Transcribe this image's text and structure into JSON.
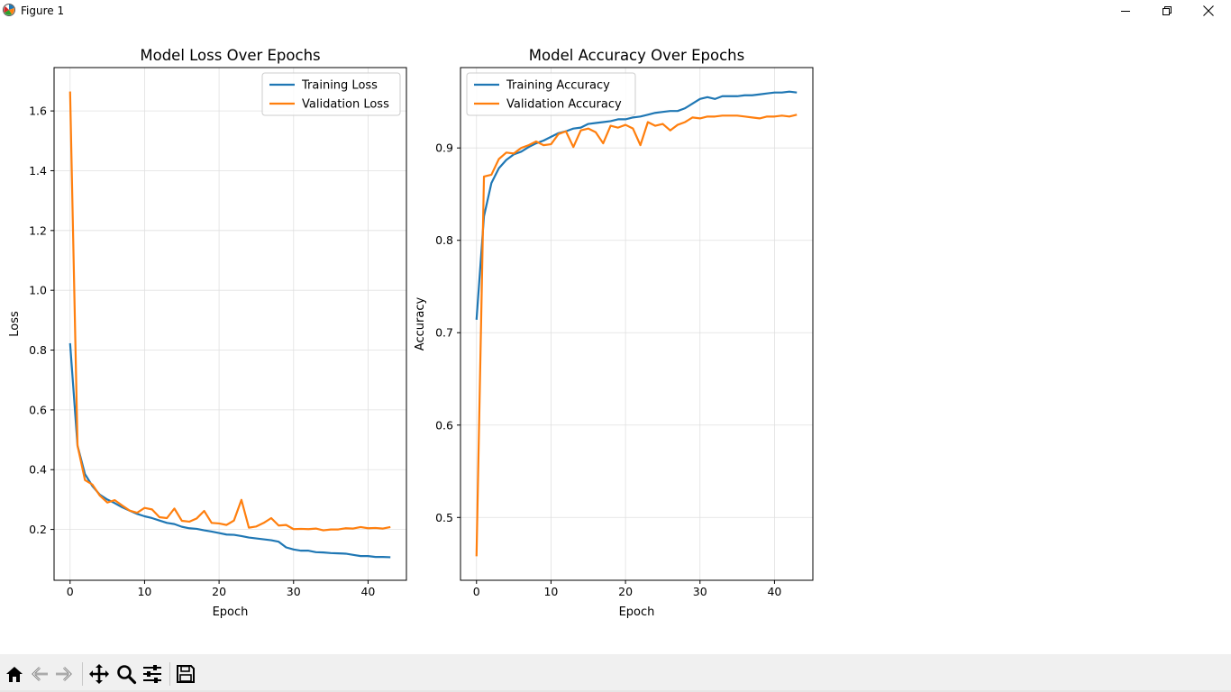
{
  "window": {
    "title": "Figure 1",
    "icons": [
      "matplotlib-app-icon",
      "minimize-icon",
      "restore-icon",
      "close-icon"
    ]
  },
  "toolbar": {
    "buttons": [
      {
        "name": "home-icon",
        "tooltip": "Reset original view"
      },
      {
        "name": "back-arrow-icon",
        "tooltip": "Back to previous view"
      },
      {
        "name": "forward-arrow-icon",
        "tooltip": "Forward to next view"
      },
      {
        "name": "pan-icon",
        "tooltip": "Pan axes"
      },
      {
        "name": "zoom-icon",
        "tooltip": "Zoom to rectangle"
      },
      {
        "name": "configure-subplots-icon",
        "tooltip": "Configure subplots"
      },
      {
        "name": "save-icon",
        "tooltip": "Save the figure"
      }
    ]
  },
  "colors": {
    "blue": "#1f77b4",
    "orange": "#ff7f0e",
    "grid": "#e0e0e0"
  },
  "chart_data": [
    {
      "type": "line",
      "title": "Model Loss Over Epochs",
      "xlabel": "Epoch",
      "ylabel": "Loss",
      "xlim": [
        -2.15,
        45.15
      ],
      "ylim": [
        0.03,
        1.745
      ],
      "xticks": [
        "0",
        "10",
        "20",
        "30",
        "40"
      ],
      "xtick_values": [
        0,
        10,
        20,
        30,
        40
      ],
      "yticks": [
        "0.2",
        "0.4",
        "0.6",
        "0.8",
        "1.0",
        "1.2",
        "1.4",
        "1.6"
      ],
      "ytick_values": [
        0.2,
        0.4,
        0.6,
        0.8,
        1.0,
        1.2,
        1.4,
        1.6
      ],
      "grid": true,
      "legend": "upper right",
      "series": [
        {
          "name": "Training Loss",
          "color": "#1f77b4",
          "values": [
            0.823,
            0.48,
            0.385,
            0.345,
            0.316,
            0.3,
            0.288,
            0.274,
            0.263,
            0.252,
            0.244,
            0.238,
            0.23,
            0.222,
            0.218,
            0.209,
            0.204,
            0.202,
            0.197,
            0.193,
            0.188,
            0.183,
            0.182,
            0.178,
            0.173,
            0.17,
            0.167,
            0.164,
            0.159,
            0.14,
            0.133,
            0.129,
            0.129,
            0.124,
            0.123,
            0.121,
            0.12,
            0.119,
            0.115,
            0.111,
            0.111,
            0.108,
            0.108,
            0.107
          ]
        },
        {
          "name": "Validation Loss",
          "color": "#ff7f0e",
          "values": [
            1.665,
            0.48,
            0.365,
            0.35,
            0.313,
            0.29,
            0.298,
            0.28,
            0.263,
            0.256,
            0.272,
            0.267,
            0.241,
            0.238,
            0.27,
            0.229,
            0.226,
            0.237,
            0.262,
            0.222,
            0.22,
            0.215,
            0.23,
            0.299,
            0.206,
            0.21,
            0.222,
            0.238,
            0.213,
            0.215,
            0.201,
            0.202,
            0.201,
            0.203,
            0.197,
            0.2,
            0.2,
            0.204,
            0.203,
            0.208,
            0.204,
            0.205,
            0.203,
            0.208
          ]
        }
      ]
    },
    {
      "type": "line",
      "title": "Model Accuracy Over Epochs",
      "xlabel": "Epoch",
      "ylabel": "Accuracy",
      "xlim": [
        -2.15,
        45.15
      ],
      "ylim": [
        0.432,
        0.987
      ],
      "xticks": [
        "0",
        "10",
        "20",
        "30",
        "40"
      ],
      "xtick_values": [
        0,
        10,
        20,
        30,
        40
      ],
      "yticks": [
        "0.5",
        "0.6",
        "0.7",
        "0.8",
        "0.9"
      ],
      "ytick_values": [
        0.5,
        0.6,
        0.7,
        0.8,
        0.9
      ],
      "grid": true,
      "legend": "upper left",
      "series": [
        {
          "name": "Training Accuracy",
          "color": "#1f77b4",
          "values": [
            0.714,
            0.826,
            0.862,
            0.878,
            0.887,
            0.893,
            0.896,
            0.901,
            0.905,
            0.908,
            0.912,
            0.916,
            0.918,
            0.921,
            0.922,
            0.926,
            0.927,
            0.928,
            0.929,
            0.931,
            0.931,
            0.933,
            0.934,
            0.936,
            0.938,
            0.939,
            0.94,
            0.94,
            0.943,
            0.948,
            0.953,
            0.955,
            0.953,
            0.956,
            0.956,
            0.956,
            0.957,
            0.957,
            0.958,
            0.959,
            0.96,
            0.96,
            0.961,
            0.96
          ]
        },
        {
          "name": "Validation Accuracy",
          "color": "#ff7f0e",
          "values": [
            0.458,
            0.869,
            0.871,
            0.888,
            0.895,
            0.894,
            0.9,
            0.903,
            0.907,
            0.903,
            0.904,
            0.915,
            0.918,
            0.901,
            0.919,
            0.921,
            0.917,
            0.905,
            0.924,
            0.922,
            0.925,
            0.921,
            0.903,
            0.928,
            0.924,
            0.926,
            0.919,
            0.925,
            0.928,
            0.933,
            0.932,
            0.934,
            0.934,
            0.935,
            0.935,
            0.935,
            0.934,
            0.933,
            0.932,
            0.934,
            0.934,
            0.935,
            0.934,
            0.936
          ]
        }
      ]
    }
  ]
}
